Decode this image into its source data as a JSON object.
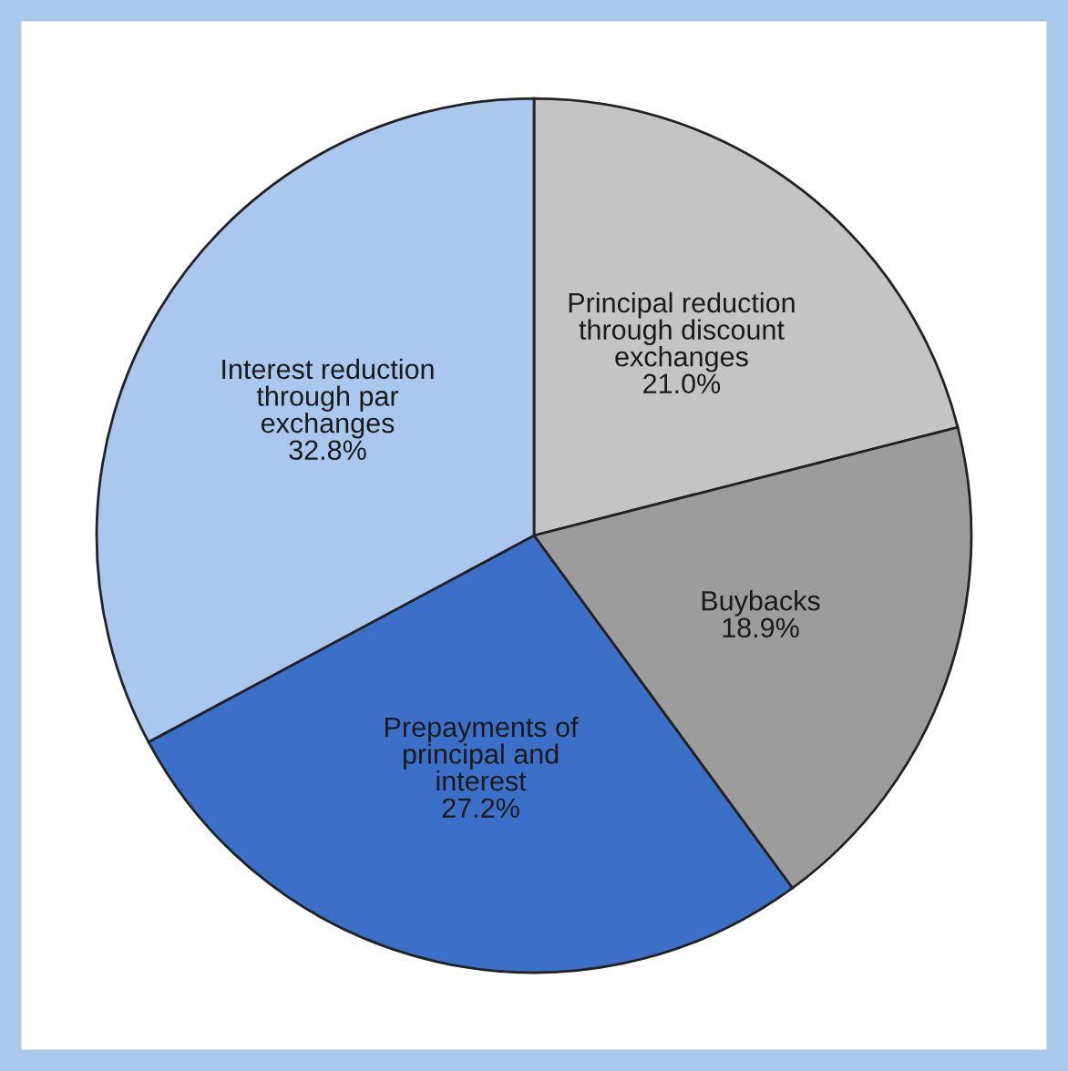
{
  "chart_data": {
    "type": "pie",
    "categories": [
      "Principal reduction\nthrough discount\nexchanges",
      "Buybacks",
      "Prepayments of\nprincipal and\ninterest",
      "Interest reduction\nthrough par\nexchanges"
    ],
    "values": [
      21.0,
      18.9,
      27.2,
      32.8
    ],
    "value_labels": [
      "21.0%",
      "18.9%",
      "27.2%",
      "32.8%"
    ],
    "colors": [
      "#c4c4c4",
      "#9c9c9c",
      "#3c70c8",
      "#aac8ee"
    ]
  }
}
